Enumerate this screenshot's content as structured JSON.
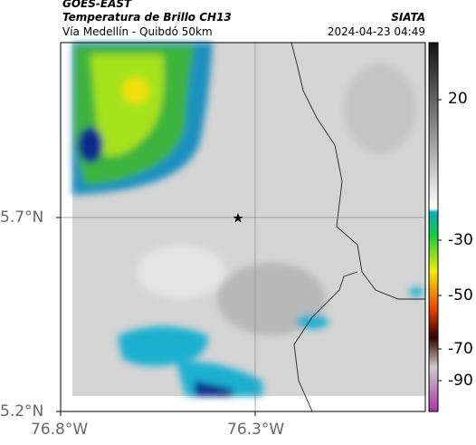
{
  "header": {
    "source": "GOES-EAST",
    "title": "Temperatura de Brillo CH13",
    "subtitle": "Vía Medellín - Quibdó 50km",
    "brand": "SIATA",
    "timestamp": "2024-04-23 04:49"
  },
  "axes": {
    "latitudes": [
      "5.7°N",
      "5.2°N"
    ],
    "longitudes": [
      "76.8°W",
      "76.3°W"
    ]
  },
  "colorbar": {
    "ticks": [
      "20",
      "-30",
      "-50",
      "-70",
      "-90"
    ]
  }
}
